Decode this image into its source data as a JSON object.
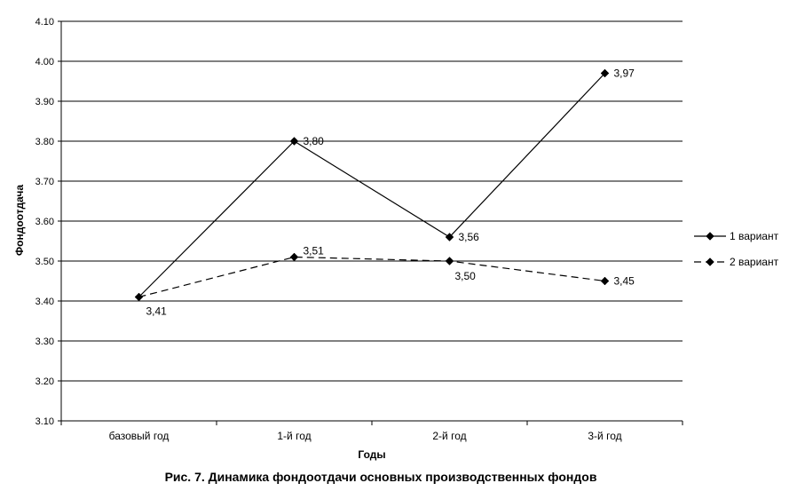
{
  "chart_data": {
    "type": "line",
    "categories": [
      "базовый год",
      "1-й год",
      "2-й год",
      "3-й год"
    ],
    "series": [
      {
        "name": "1 вариант",
        "values": [
          3.41,
          3.8,
          3.56,
          3.97
        ],
        "labels": [
          "3,41",
          "3,80",
          "3,56",
          "3,97"
        ],
        "dash": "solid",
        "color": "#000000"
      },
      {
        "name": "2 вариант",
        "values": [
          3.41,
          3.51,
          3.5,
          3.45
        ],
        "labels": [
          "",
          "3,51",
          "3,50",
          "3,45"
        ],
        "dash": "dashed",
        "color": "#000000"
      }
    ],
    "xlabel": "Годы",
    "ylabel": "Фондоотдача",
    "ylim": [
      3.1,
      4.1
    ],
    "yticks": [
      3.1,
      3.2,
      3.3,
      3.4,
      3.5,
      3.6,
      3.7,
      3.8,
      3.9,
      4.0,
      4.1
    ],
    "ytick_labels": [
      "3.10",
      "3.20",
      "3.30",
      "3.40",
      "3.50",
      "3.60",
      "3.70",
      "3.80",
      "3.90",
      "4.00",
      "4.10"
    ],
    "grid": true,
    "legend_position": "right",
    "marker": "diamond"
  },
  "caption": "Рис. 7. Динамика фондоотдачи основных производственных фондов"
}
